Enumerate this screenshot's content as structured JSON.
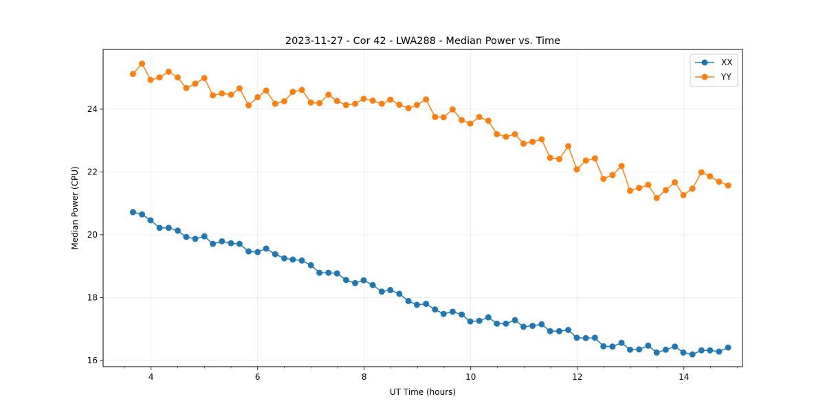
{
  "chart_data": {
    "type": "line",
    "title": "2023-11-27 - Cor 42 - LWA288 - Median Power vs. Time",
    "xlabel": "UT Time (hours)",
    "ylabel": "Median Power (CPU)",
    "xlim": [
      3.1,
      15.1
    ],
    "ylim": [
      15.8,
      25.9
    ],
    "xticks": [
      4,
      6,
      8,
      10,
      12,
      14
    ],
    "yticks": [
      16,
      18,
      20,
      22,
      24
    ],
    "grid": true,
    "legend_position": "top-right",
    "series": [
      {
        "name": "XX",
        "color": "#1f77b4",
        "marker": "circle",
        "x": [
          3.66,
          3.83,
          3.99,
          4.16,
          4.33,
          4.5,
          4.66,
          4.83,
          5.0,
          5.16,
          5.33,
          5.5,
          5.66,
          5.83,
          6.0,
          6.16,
          6.33,
          6.5,
          6.66,
          6.83,
          7.0,
          7.16,
          7.33,
          7.49,
          7.66,
          7.83,
          7.99,
          8.16,
          8.33,
          8.49,
          8.66,
          8.83,
          8.99,
          9.16,
          9.33,
          9.49,
          9.66,
          9.83,
          9.99,
          10.16,
          10.33,
          10.49,
          10.66,
          10.83,
          10.99,
          11.16,
          11.33,
          11.49,
          11.66,
          11.83,
          11.99,
          12.16,
          12.33,
          12.49,
          12.66,
          12.83,
          12.99,
          13.16,
          13.33,
          13.49,
          13.66,
          13.83,
          13.99,
          14.16,
          14.33,
          14.49,
          14.66,
          14.83
        ],
        "values": [
          20.72,
          20.65,
          20.46,
          20.22,
          20.22,
          20.13,
          19.93,
          19.87,
          19.95,
          19.71,
          19.79,
          19.73,
          19.71,
          19.47,
          19.45,
          19.56,
          19.38,
          19.25,
          19.21,
          19.18,
          19.03,
          18.79,
          18.79,
          18.77,
          18.56,
          18.46,
          18.55,
          18.4,
          18.19,
          18.24,
          18.12,
          17.89,
          17.77,
          17.8,
          17.62,
          17.48,
          17.55,
          17.46,
          17.24,
          17.26,
          17.37,
          17.17,
          17.17,
          17.28,
          17.07,
          17.1,
          17.15,
          16.93,
          16.93,
          16.97,
          16.72,
          16.71,
          16.72,
          16.45,
          16.44,
          16.56,
          16.34,
          16.35,
          16.47,
          16.25,
          16.34,
          16.44,
          16.25,
          16.19,
          16.32,
          16.32,
          16.28,
          16.41
        ]
      },
      {
        "name": "YY",
        "color": "#ff7f0e",
        "marker": "circle",
        "x": [
          3.66,
          3.83,
          3.99,
          4.16,
          4.33,
          4.5,
          4.66,
          4.83,
          5.0,
          5.16,
          5.33,
          5.5,
          5.66,
          5.83,
          6.0,
          6.16,
          6.33,
          6.5,
          6.66,
          6.83,
          7.0,
          7.16,
          7.33,
          7.49,
          7.66,
          7.83,
          7.99,
          8.16,
          8.33,
          8.49,
          8.66,
          8.83,
          8.99,
          9.16,
          9.33,
          9.49,
          9.66,
          9.83,
          9.99,
          10.16,
          10.33,
          10.49,
          10.66,
          10.83,
          10.99,
          11.16,
          11.33,
          11.49,
          11.66,
          11.83,
          11.99,
          12.16,
          12.33,
          12.49,
          12.66,
          12.83,
          12.99,
          13.16,
          13.33,
          13.49,
          13.66,
          13.83,
          13.99,
          14.16,
          14.33,
          14.49,
          14.66,
          14.83
        ],
        "values": [
          25.12,
          25.45,
          24.93,
          25.01,
          25.19,
          25.01,
          24.67,
          24.81,
          24.99,
          24.44,
          24.5,
          24.46,
          24.66,
          24.12,
          24.38,
          24.59,
          24.17,
          24.25,
          24.55,
          24.61,
          24.21,
          24.19,
          24.46,
          24.26,
          24.13,
          24.17,
          24.33,
          24.27,
          24.17,
          24.3,
          24.14,
          24.03,
          24.13,
          24.31,
          23.75,
          23.74,
          23.99,
          23.65,
          23.54,
          23.75,
          23.63,
          23.2,
          23.12,
          23.2,
          22.9,
          22.96,
          23.04,
          22.45,
          22.41,
          22.82,
          22.08,
          22.36,
          22.43,
          21.78,
          21.9,
          22.19,
          21.4,
          21.49,
          21.59,
          21.17,
          21.42,
          21.67,
          21.26,
          21.47,
          21.99,
          21.86,
          21.69,
          21.57
        ]
      }
    ]
  }
}
